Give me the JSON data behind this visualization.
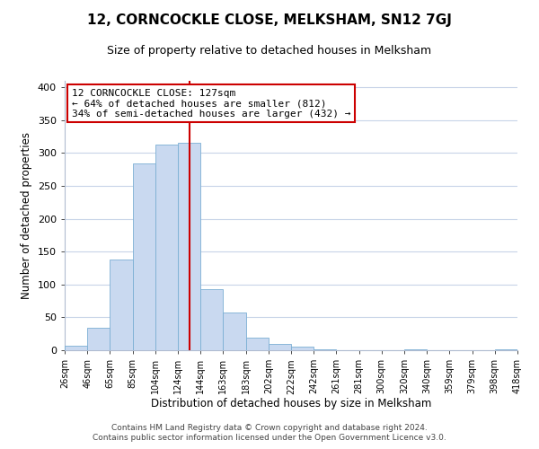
{
  "title": "12, CORNCOCKLE CLOSE, MELKSHAM, SN12 7GJ",
  "subtitle": "Size of property relative to detached houses in Melksham",
  "xlabel": "Distribution of detached houses by size in Melksham",
  "ylabel": "Number of detached properties",
  "bar_values": [
    7,
    34,
    138,
    284,
    313,
    316,
    93,
    57,
    19,
    10,
    5,
    1,
    0,
    0,
    0,
    1,
    0,
    0,
    0,
    1
  ],
  "bin_labels": [
    "26sqm",
    "46sqm",
    "65sqm",
    "85sqm",
    "104sqm",
    "124sqm",
    "144sqm",
    "163sqm",
    "183sqm",
    "202sqm",
    "222sqm",
    "242sqm",
    "261sqm",
    "281sqm",
    "300sqm",
    "320sqm",
    "340sqm",
    "359sqm",
    "379sqm",
    "398sqm",
    "418sqm"
  ],
  "bar_color": "#c9d9f0",
  "bar_edge_color": "#7bafd4",
  "vline_x": 5.5,
  "vline_color": "#cc0000",
  "annotation_text": "12 CORNCOCKLE CLOSE: 127sqm\n← 64% of detached houses are smaller (812)\n34% of semi-detached houses are larger (432) →",
  "annotation_box_color": "#ffffff",
  "annotation_box_edge": "#cc0000",
  "ylim": [
    0,
    410
  ],
  "yticks": [
    0,
    50,
    100,
    150,
    200,
    250,
    300,
    350,
    400
  ],
  "footer1": "Contains HM Land Registry data © Crown copyright and database right 2024.",
  "footer2": "Contains public sector information licensed under the Open Government Licence v3.0.",
  "background_color": "#ffffff",
  "grid_color": "#c8d4e8",
  "title_fontsize": 11,
  "subtitle_fontsize": 9
}
